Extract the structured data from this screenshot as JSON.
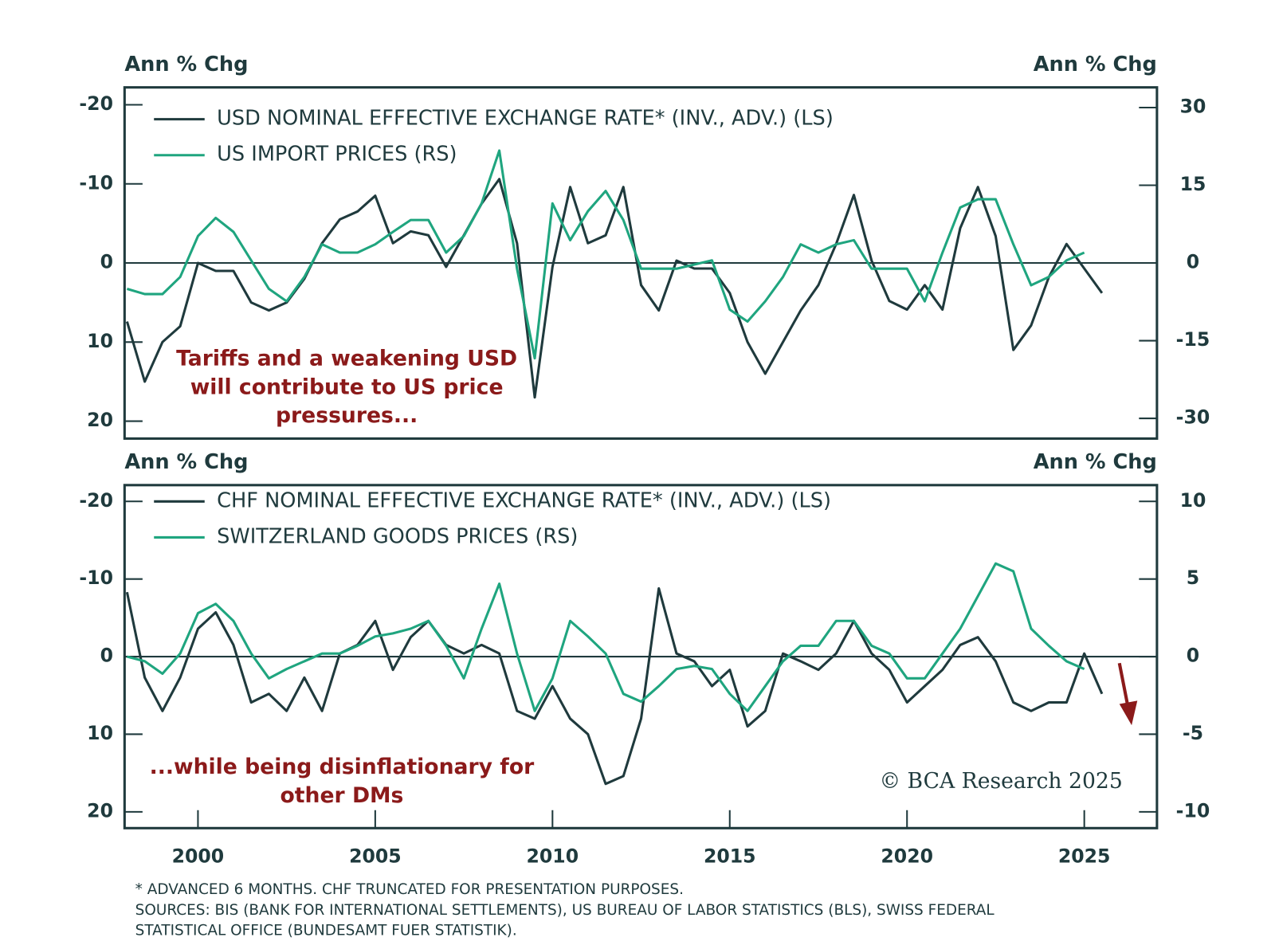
{
  "chart_data": [
    {
      "type": "line",
      "ylabel": "Ann % Chg",
      "y2label": "Ann % Chg",
      "xlim": [
        1997.93,
        2027.05
      ],
      "ylim": [
        22.2,
        -22.2
      ],
      "yticks": [
        -20,
        -10,
        0,
        10,
        20
      ],
      "y2lim": [
        -33.9,
        33.9
      ],
      "y2ticks": [
        30,
        15,
        0,
        -15,
        -30
      ],
      "zero_line": true,
      "x": [
        1998,
        1998.5,
        1999,
        1999.5,
        2000,
        2000.5,
        2001,
        2001.5,
        2002,
        2002.5,
        2003,
        2003.5,
        2004,
        2004.5,
        2005,
        2005.5,
        2006,
        2006.5,
        2007,
        2007.5,
        2008,
        2008.5,
        2009,
        2009.5,
        2010,
        2010.5,
        2011,
        2011.5,
        2012,
        2012.5,
        2013,
        2013.5,
        2014,
        2014.5,
        2015,
        2015.5,
        2016,
        2016.5,
        2017,
        2017.5,
        2018,
        2018.5,
        2019,
        2019.5,
        2020,
        2020.5,
        2021,
        2021.5,
        2022,
        2022.5,
        2023,
        2023.5,
        2024,
        2024.5,
        2025,
        2025.5
      ],
      "series": [
        {
          "name": "USD NOMINAL EFFECTIVE EXCHANGE RATE* (INV., ADV.) (LS)",
          "color": "#1f3a3d",
          "values": [
            7.4,
            15,
            10,
            8,
            0,
            1,
            1,
            5,
            6,
            5,
            2,
            -2.5,
            -5.5,
            -6.5,
            -8.5,
            -2.5,
            -4,
            -3.5,
            0.5,
            -3.5,
            -7.5,
            -10.6,
            -2.5,
            17,
            0.5,
            -9.6,
            -2.5,
            -3.5,
            -9.6,
            2.8,
            6,
            -0.3,
            0.7,
            0.7,
            3.8,
            10,
            14,
            10,
            6,
            2.8,
            -2.4,
            -8.6,
            -0.3,
            4.8,
            5.9,
            2.8,
            5.9,
            -4.4,
            -9.6,
            -3.4,
            11,
            7.9,
            1.8,
            -2.4,
            0.7,
            3.8
          ]
        },
        {
          "name": "US IMPORT PRICES (RS)",
          "color": "#1fa57f",
          "axis": "y2",
          "values": [
            -5,
            -6,
            -6,
            -2.7,
            5.2,
            8.7,
            6,
            0.5,
            -5,
            -7.4,
            -2.7,
            3.6,
            2,
            2,
            3.6,
            6,
            8.3,
            8.3,
            2,
            5.2,
            11.5,
            21.7,
            -1.1,
            -18.4,
            11.5,
            4.4,
            10,
            13.9,
            8.3,
            -1.1,
            -1.1,
            -1.1,
            -0.3,
            0.5,
            -9,
            -11.3,
            -7.4,
            -2.7,
            3.6,
            2,
            3.6,
            4.4,
            -1.1,
            -1.1,
            -1.1,
            -7.4,
            2,
            10.7,
            12.3,
            12.3,
            3.6,
            -4.3,
            -2.7,
            0.5,
            2,
            null
          ]
        }
      ],
      "annotation": [
        "Tariffs and a weakening USD",
        "will contribute to US price",
        "pressures..."
      ]
    },
    {
      "type": "line",
      "ylabel": "Ann % Chg",
      "y2label": "Ann % Chg",
      "xlim": [
        1997.93,
        2027.05
      ],
      "xticks": [
        2000,
        2005,
        2010,
        2015,
        2020,
        2025
      ],
      "ylim": [
        22.1,
        -22.1
      ],
      "yticks": [
        -20,
        -10,
        0,
        10,
        20
      ],
      "y2lim": [
        -11.05,
        11.05
      ],
      "y2ticks": [
        10,
        5,
        0,
        -5,
        -10
      ],
      "zero_line": true,
      "x": [
        1998,
        1998.5,
        1999,
        1999.5,
        2000,
        2000.5,
        2001,
        2001.5,
        2002,
        2002.5,
        2003,
        2003.5,
        2004,
        2004.5,
        2005,
        2005.5,
        2006,
        2006.5,
        2007,
        2007.5,
        2008,
        2008.5,
        2009,
        2009.5,
        2010,
        2010.5,
        2011,
        2011.5,
        2012,
        2012.5,
        2013,
        2013.5,
        2014,
        2014.5,
        2015,
        2015.5,
        2016,
        2016.5,
        2017,
        2017.5,
        2018,
        2018.5,
        2019,
        2019.5,
        2020,
        2020.5,
        2021,
        2021.5,
        2022,
        2022.5,
        2023,
        2023.5,
        2024,
        2024.5,
        2025,
        2025.5
      ],
      "series": [
        {
          "name": "CHF NOMINAL EFFECTIVE EXCHANGE RATE* (INV., ADV.) (LS)",
          "color": "#1f3a3d",
          "values": [
            -8.3,
            2.7,
            7,
            2.7,
            -3.6,
            -5.7,
            -1.5,
            5.9,
            4.8,
            7,
            2.7,
            7,
            -0.4,
            -1.5,
            -4.6,
            1.7,
            -2.5,
            -4.6,
            -1.5,
            -0.4,
            -1.5,
            -0.4,
            7,
            8,
            3.8,
            8,
            10,
            16.4,
            15.4,
            8,
            -8.8,
            -0.4,
            0.6,
            3.8,
            1.7,
            9,
            7,
            -0.4,
            0.6,
            1.7,
            -0.4,
            -4.6,
            -0.4,
            1.7,
            5.9,
            3.8,
            1.7,
            -1.5,
            -2.5,
            0.6,
            5.9,
            7,
            5.9,
            5.9,
            -0.4,
            4.8
          ]
        },
        {
          "name": "SWITZERLAND GOODS PRICES (RS)",
          "color": "#1fa57f",
          "axis": "y2",
          "values": [
            0,
            -0.3,
            -1.1,
            0.2,
            2.8,
            3.4,
            2.3,
            0.2,
            -1.4,
            -0.8,
            -0.3,
            0.2,
            0.2,
            0.7,
            1.3,
            1.5,
            1.8,
            2.3,
            0.7,
            -1.4,
            1.8,
            4.7,
            0.2,
            -3.5,
            -1.4,
            2.3,
            1.3,
            0.2,
            -2.4,
            -2.9,
            -1.9,
            -0.8,
            -0.6,
            -0.8,
            -2.4,
            -3.5,
            -1.9,
            -0.3,
            0.7,
            0.7,
            2.3,
            2.3,
            0.7,
            0.2,
            -1.4,
            -1.4,
            0.2,
            1.8,
            3.9,
            6,
            5.5,
            1.8,
            0.7,
            -0.3,
            -0.8,
            null
          ]
        }
      ],
      "annotation": [
        "...while being disinflationary for",
        "other DMs"
      ],
      "copyright": "© BCA Research 2025"
    }
  ],
  "notes": [
    "* ADVANCED 6 MONTHS. CHF TRUNCATED FOR PRESENTATION PURPOSES.",
    "SOURCES: BIS (BANK FOR INTERNATIONAL SETTLEMENTS), US BUREAU OF LABOR STATISTICS (BLS), SWISS FEDERAL",
    "STATISTICAL OFFICE (BUNDESAMT FUER STATISTIK)."
  ]
}
